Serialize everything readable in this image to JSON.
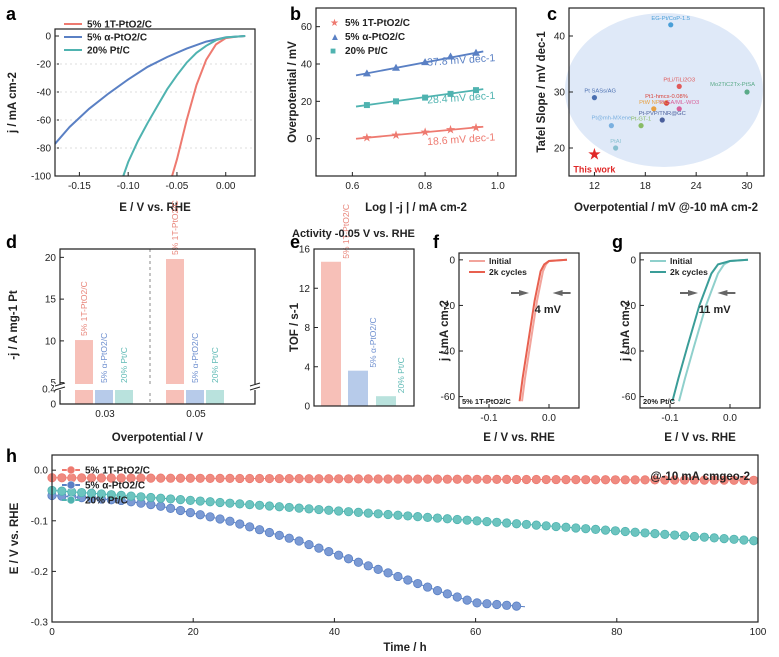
{
  "colors": {
    "red": "#ee7a70",
    "blue": "#5a80c4",
    "teal": "#4fb3b0",
    "pred": "#f7c0b8",
    "pblue": "#b7cbea",
    "pteal": "#b9e2dd",
    "ellipse": "#dfe9f8"
  },
  "panel_labels": {
    "a": "a",
    "b": "b",
    "c": "c",
    "d": "d",
    "e": "e",
    "f": "f",
    "g": "g",
    "h": "h"
  },
  "chart_data": [
    {
      "id": "a",
      "type": "line",
      "title": "",
      "xlabel": "E / V vs. RHE",
      "ylabel": "j / mA cm-2",
      "xlim": [
        -0.175,
        0.03
      ],
      "ylim": [
        -100,
        5
      ],
      "xticks": [
        -0.15,
        -0.1,
        -0.05,
        0.0
      ],
      "xtick_labels": [
        "-0.15",
        "-0.10",
        "-0.05",
        "0.00"
      ],
      "yticks": [
        0,
        -20,
        -40,
        -60,
        -80,
        -100
      ],
      "ytick_labels": [
        "0",
        "-20",
        "-40",
        "-60",
        "-80",
        "-100"
      ],
      "series": [
        {
          "name": "5% 1T-PtO2/C",
          "color": "red",
          "x": [
            0.02,
            0.01,
            0.0,
            -0.01,
            -0.02,
            -0.03,
            -0.04,
            -0.05,
            -0.055
          ],
          "y": [
            0,
            -0.5,
            -1.5,
            -6,
            -17,
            -35,
            -60,
            -88,
            -100
          ]
        },
        {
          "name": "5% α-PtO2/C",
          "color": "blue",
          "x": [
            0.02,
            0.0,
            -0.02,
            -0.04,
            -0.06,
            -0.08,
            -0.1,
            -0.12,
            -0.14,
            -0.16,
            -0.175
          ],
          "y": [
            0,
            -1,
            -4,
            -9,
            -15,
            -22,
            -31,
            -41,
            -52,
            -65,
            -77
          ]
        },
        {
          "name": "20% Pt/C",
          "color": "teal",
          "x": [
            0.02,
            0.0,
            -0.01,
            -0.02,
            -0.03,
            -0.04,
            -0.05,
            -0.06,
            -0.07,
            -0.08,
            -0.09,
            -0.1,
            -0.105
          ],
          "y": [
            0,
            -1,
            -3,
            -7,
            -12,
            -19,
            -28,
            -38,
            -50,
            -62,
            -75,
            -90,
            -100
          ]
        }
      ],
      "legend": "top-right"
    },
    {
      "id": "b",
      "type": "scatter",
      "xlabel": "Log | -j | / mA cm-2",
      "ylabel": "Overpotential / mV",
      "xlim": [
        0.5,
        1.05
      ],
      "ylim": [
        -20,
        70
      ],
      "xticks": [
        0.6,
        0.8,
        1.0
      ],
      "xtick_labels": [
        "0.6",
        "0.8",
        "1.0"
      ],
      "yticks": [
        0,
        20,
        40,
        60
      ],
      "ytick_labels": [
        "0",
        "20",
        "40",
        "60"
      ],
      "series": [
        {
          "name": "5% 1T-PtO2/C",
          "marker": "star",
          "color": "red",
          "x": [
            0.64,
            0.72,
            0.8,
            0.87,
            0.94
          ],
          "y": [
            0.5,
            2,
            3.5,
            5,
            6
          ],
          "fit_label": "18.6 mV dec-1"
        },
        {
          "name": "5% α-PtO2/C",
          "marker": "triangle",
          "color": "blue",
          "x": [
            0.64,
            0.72,
            0.8,
            0.87,
            0.94
          ],
          "y": [
            35,
            38,
            41,
            44,
            46
          ],
          "fit_label": "37.8 mV dec-1"
        },
        {
          "name": "20% Pt/C",
          "marker": "square",
          "color": "teal",
          "x": [
            0.64,
            0.72,
            0.8,
            0.87,
            0.94
          ],
          "y": [
            18,
            20,
            22,
            24,
            26
          ],
          "fit_label": "28.4 mV dec-1"
        }
      ],
      "legend": "top-left"
    },
    {
      "id": "c",
      "type": "scatter",
      "xlabel": "Overpotential / mV @-10 mA cm-2",
      "ylabel": "Tafel Slope / mV dec-1",
      "xlim": [
        9,
        32
      ],
      "ylim": [
        15,
        45
      ],
      "xticks": [
        12,
        18,
        24,
        30
      ],
      "xtick_labels": [
        "12",
        "18",
        "24",
        "30"
      ],
      "yticks": [
        20,
        30,
        40
      ],
      "ytick_labels": [
        "20",
        "30",
        "40"
      ],
      "points": [
        {
          "label": "EG-Pt/CoP-1.5",
          "x": 21,
          "y": 42,
          "color": "#4a9fd8"
        },
        {
          "label": "Pt SASs/AG",
          "x": 12,
          "y": 29,
          "color": "#4a6fb0"
        },
        {
          "label": "PtLi/TiLi2O3",
          "x": 22,
          "y": 31,
          "color": "#e05a5a"
        },
        {
          "label": "Pt1-hmcs-0.08%",
          "x": 20.5,
          "y": 28,
          "color": "#d8443c"
        },
        {
          "label": "Mo2TiC2Tx-PtSA",
          "x": 30,
          "y": 30,
          "color": "#5aaa88"
        },
        {
          "label": "PtW NPs/C",
          "x": 19,
          "y": 27,
          "color": "#e8a040"
        },
        {
          "label": "Pt-SA/ML-WO3",
          "x": 22,
          "y": 27,
          "color": "#d8609a"
        },
        {
          "label": "Pt@mh-MXene",
          "x": 14,
          "y": 24,
          "color": "#7ab0e0"
        },
        {
          "label": "Pt-PVP/TNR@GC",
          "x": 20,
          "y": 25,
          "color": "#4a5f9c"
        },
        {
          "label": "Pt-GT-1",
          "x": 17.5,
          "y": 24,
          "color": "#88bb66"
        },
        {
          "label": "PtAl",
          "x": 14.5,
          "y": 20,
          "color": "#88c0d0"
        },
        {
          "label": "This work",
          "x": 12,
          "y": 19,
          "color": "#e02828"
        }
      ]
    },
    {
      "id": "d",
      "type": "bar",
      "xlabel": "Overpotential / V",
      "ylabel": "-j / A mg-1 Pt",
      "categories": [
        "0.03",
        "0.05"
      ],
      "yticks": [
        0,
        0.4,
        5,
        10,
        15,
        20
      ],
      "ytick_labels": [
        "0",
        "0.4",
        "5",
        "10",
        "15",
        "20"
      ],
      "axis_break": [
        0.45,
        4
      ],
      "series": [
        {
          "name": "5% 1T-PtO2/C",
          "color": "pred",
          "values": [
            10.1,
            19.8
          ]
        },
        {
          "name": "5% α-PtO2/C",
          "color": "pblue",
          "values": [
            0.52,
            1.9
          ]
        },
        {
          "name": "20% Pt/C",
          "color": "pteal",
          "values": [
            0.48,
            1.3
          ]
        }
      ]
    },
    {
      "id": "e",
      "type": "bar",
      "title": "Activity -0.05 V vs. RHE",
      "ylabel": "TOF / s-1",
      "categories": [
        "5% 1T-PtO2/C",
        "5% α-PtO2/C",
        "20% Pt/C"
      ],
      "colors": [
        "pred",
        "pblue",
        "pteal"
      ],
      "values": [
        14.7,
        3.6,
        1.0
      ],
      "ylim": [
        0,
        16
      ],
      "yticks": [
        0,
        4,
        8,
        12,
        16
      ],
      "ytick_labels": [
        "0",
        "4",
        "8",
        "12",
        "16"
      ]
    },
    {
      "id": "f",
      "type": "line",
      "xlabel": "E / V vs. RHE",
      "ylabel": "j / mA cm-2",
      "xlim": [
        -0.15,
        0.05
      ],
      "ylim": [
        -65,
        3
      ],
      "xticks": [
        -0.1,
        0.0
      ],
      "xtick_labels": [
        "-0.1",
        "0.0"
      ],
      "yticks": [
        0,
        -20,
        -40,
        -60
      ],
      "ytick_labels": [
        "0",
        "-20",
        "-40",
        "-60"
      ],
      "annotation": "4 mV",
      "sample": "5% 1T-PtO2/C",
      "series": [
        {
          "name": "Initial",
          "color": "#f2a49c",
          "x": [
            0.03,
            0.0,
            -0.005,
            -0.01,
            -0.02,
            -0.03,
            -0.04,
            -0.045
          ],
          "y": [
            0,
            -0.5,
            -2,
            -5,
            -18,
            -35,
            -52,
            -62
          ]
        },
        {
          "name": "2k cycles",
          "color": "#e8604f",
          "x": [
            0.03,
            0.0,
            -0.008,
            -0.014,
            -0.024,
            -0.034,
            -0.044,
            -0.049
          ],
          "y": [
            0,
            -0.5,
            -2,
            -5,
            -18,
            -35,
            -52,
            -62
          ]
        }
      ]
    },
    {
      "id": "g",
      "type": "line",
      "xlabel": "E / V vs. RHE",
      "ylabel": "j / mA cm-2",
      "xlim": [
        -0.15,
        0.05
      ],
      "ylim": [
        -65,
        3
      ],
      "xticks": [
        -0.1,
        0.0
      ],
      "xtick_labels": [
        "-0.1",
        "0.0"
      ],
      "yticks": [
        0,
        -20,
        -40,
        -60
      ],
      "ytick_labels": [
        "0",
        "-20",
        "-40",
        "-60"
      ],
      "annotation": "11 mV",
      "sample": "20% Pt/C",
      "series": [
        {
          "name": "Initial",
          "color": "#8fd0cc",
          "x": [
            0.03,
            0.0,
            -0.01,
            -0.02,
            -0.04,
            -0.06,
            -0.075,
            -0.085
          ],
          "y": [
            0,
            -0.5,
            -2,
            -6,
            -20,
            -38,
            -52,
            -62
          ]
        },
        {
          "name": "2k cycles",
          "color": "#3a9d98",
          "x": [
            0.03,
            0.0,
            -0.02,
            -0.031,
            -0.051,
            -0.071,
            -0.086,
            -0.096
          ],
          "y": [
            0,
            -0.5,
            -2,
            -6,
            -20,
            -38,
            -52,
            -62
          ]
        }
      ]
    },
    {
      "id": "h",
      "type": "line",
      "xlabel": "Time / h",
      "ylabel": "E / V vs. RHE",
      "xlim": [
        0,
        100
      ],
      "ylim": [
        -0.3,
        0.03
      ],
      "xticks": [
        0,
        20,
        40,
        60,
        80,
        100
      ],
      "xtick_labels": [
        "0",
        "20",
        "40",
        "60",
        "80",
        "100"
      ],
      "yticks": [
        0.0,
        -0.1,
        -0.2,
        -0.3
      ],
      "ytick_labels": [
        "0.0",
        "-0.1",
        "-0.2",
        "-0.3"
      ],
      "note": "@-10 mA cmgeo-2",
      "series": [
        {
          "name": "5% 1T-PtO2/C",
          "color": "red",
          "x": [
            0,
            100
          ],
          "y": [
            -0.015,
            -0.02
          ]
        },
        {
          "name": "5% α-PtO2/C",
          "color": "blue",
          "x": [
            0,
            5,
            10,
            15,
            20,
            25,
            30,
            35,
            40,
            45,
            50,
            55,
            60,
            67
          ],
          "y": [
            -0.05,
            -0.055,
            -0.06,
            -0.07,
            -0.085,
            -0.1,
            -0.12,
            -0.14,
            -0.165,
            -0.19,
            -0.215,
            -0.24,
            -0.262,
            -0.27
          ]
        },
        {
          "name": "20% Pt/C",
          "color": "teal",
          "x": [
            0,
            10,
            20,
            30,
            40,
            50,
            60,
            70,
            80,
            90,
            100
          ],
          "y": [
            -0.04,
            -0.05,
            -0.06,
            -0.07,
            -0.08,
            -0.09,
            -0.1,
            -0.11,
            -0.12,
            -0.13,
            -0.14
          ]
        }
      ],
      "legend": "top-left"
    }
  ]
}
